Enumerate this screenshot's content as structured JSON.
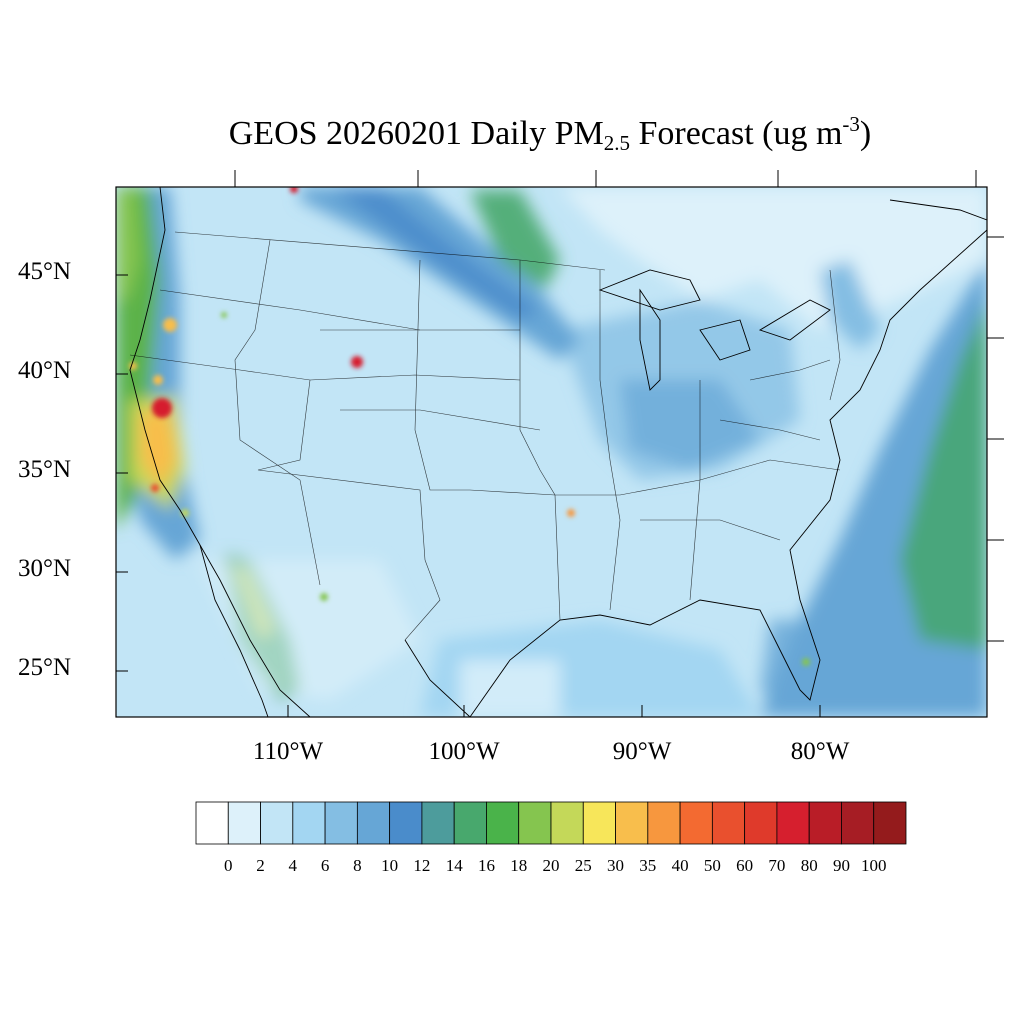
{
  "title": {
    "prefix": "GEOS 20260201 Daily PM",
    "subscript": "2.5",
    "middle": " Forecast (ug m",
    "superscript": "-3",
    "suffix": ")"
  },
  "map": {
    "extent": {
      "lon_min": -120,
      "lon_max": -71,
      "lat_min": 23,
      "lat_max": 49.5
    },
    "lat_ticks": [
      {
        "value": 45,
        "label": "45°N"
      },
      {
        "value": 40,
        "label": "40°N"
      },
      {
        "value": 35,
        "label": "35°N"
      },
      {
        "value": 30,
        "label": "30°N"
      },
      {
        "value": 25,
        "label": "25°N"
      }
    ],
    "lon_ticks": [
      {
        "value": -110,
        "label": "110°W"
      },
      {
        "value": -100,
        "label": "100°W"
      },
      {
        "value": -90,
        "label": "90°W"
      },
      {
        "value": -80,
        "label": "80°W"
      }
    ],
    "colors": {
      "background": "#c2e5f6",
      "northeast_low": "#ddf1fa",
      "ocean_east": "#6aa8d8",
      "atlantic_plume": "#4aa67b",
      "pacific_coast": "#5bb24a",
      "hotspot_high": "#d61f2e",
      "hotspot_mid": "#f8be4c",
      "hotspot_low": "#c4d859"
    }
  },
  "colorbar": {
    "levels": [
      "0",
      "2",
      "4",
      "6",
      "8",
      "10",
      "12",
      "14",
      "16",
      "18",
      "20",
      "25",
      "30",
      "35",
      "40",
      "50",
      "60",
      "70",
      "80",
      "90",
      "100"
    ],
    "colors": [
      "#ffffff",
      "#ddf1fa",
      "#c2e5f6",
      "#a3d6f2",
      "#84bee3",
      "#66a6d6",
      "#4a8ccb",
      "#4d9c9c",
      "#48a86d",
      "#4ab34a",
      "#85c54f",
      "#c4d859",
      "#f7e65a",
      "#f8be4c",
      "#f7973e",
      "#f36a31",
      "#e9502e",
      "#df3a2b",
      "#d61f2e",
      "#b91d27",
      "#a61d24",
      "#941b1c"
    ]
  }
}
